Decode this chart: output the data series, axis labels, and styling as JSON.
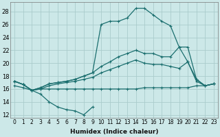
{
  "xlabel": "Humidex (Indice chaleur)",
  "bg_color": "#cce8e8",
  "grid_color": "#aacccc",
  "line_color": "#1a6e6e",
  "xlim": [
    -0.5,
    23.5
  ],
  "ylim": [
    11.5,
    29.5
  ],
  "xticks": [
    0,
    1,
    2,
    3,
    4,
    5,
    6,
    7,
    8,
    9,
    10,
    11,
    12,
    13,
    14,
    15,
    16,
    17,
    18,
    19,
    20,
    21,
    22,
    23
  ],
  "yticks": [
    12,
    14,
    16,
    18,
    20,
    22,
    24,
    26,
    28
  ],
  "series": {
    "dip": {
      "x": [
        0,
        1,
        2,
        3,
        4,
        5,
        6,
        7,
        8,
        9
      ],
      "y": [
        17.2,
        16.7,
        15.8,
        15.2,
        14.0,
        13.2,
        12.8,
        12.6,
        12.0,
        13.2
      ]
    },
    "flat_bottom": {
      "x": [
        0,
        1,
        2,
        3,
        4,
        5,
        6,
        7,
        8,
        9,
        10,
        11,
        12,
        13,
        14,
        15,
        16,
        17,
        18,
        19,
        20,
        21,
        22,
        23
      ],
      "y": [
        16.5,
        16.2,
        15.8,
        16.0,
        16.0,
        16.0,
        16.0,
        16.0,
        16.0,
        16.0,
        16.0,
        16.0,
        16.0,
        16.0,
        16.0,
        16.2,
        16.2,
        16.2,
        16.2,
        16.2,
        16.2,
        16.5,
        16.5,
        16.8
      ]
    },
    "mid_slope": {
      "x": [
        0,
        1,
        2,
        3,
        4,
        5,
        6,
        7,
        8,
        9,
        10,
        11,
        12,
        13,
        14,
        15,
        16,
        17,
        18,
        19,
        20,
        21,
        22,
        23
      ],
      "y": [
        17.2,
        16.7,
        15.8,
        16.0,
        16.5,
        16.8,
        17.0,
        17.2,
        17.5,
        17.8,
        18.5,
        19.0,
        19.5,
        20.0,
        20.5,
        20.0,
        19.8,
        19.8,
        19.5,
        19.2,
        20.2,
        17.2,
        16.5,
        16.8
      ]
    },
    "upper_slope": {
      "x": [
        0,
        1,
        2,
        3,
        4,
        5,
        6,
        7,
        8,
        9,
        10,
        11,
        12,
        13,
        14,
        15,
        16,
        17,
        18,
        19,
        20,
        21,
        22,
        23
      ],
      "y": [
        17.2,
        16.7,
        15.8,
        16.2,
        16.8,
        17.0,
        17.2,
        17.5,
        18.0,
        18.5,
        19.5,
        20.2,
        21.0,
        21.5,
        22.0,
        21.5,
        21.5,
        21.0,
        21.0,
        22.5,
        22.5,
        17.5,
        16.5,
        16.8
      ]
    },
    "peak": {
      "x": [
        0,
        1,
        2,
        3,
        4,
        5,
        6,
        7,
        8,
        9,
        10,
        11,
        12,
        13,
        14,
        15,
        16,
        17,
        18,
        19,
        20,
        21,
        22,
        23
      ],
      "y": [
        17.2,
        16.7,
        15.8,
        16.2,
        16.8,
        17.0,
        17.2,
        17.5,
        18.0,
        18.5,
        26.0,
        26.5,
        26.5,
        27.0,
        28.5,
        28.5,
        27.5,
        26.5,
        25.8,
        22.5,
        20.2,
        17.5,
        16.5,
        16.8
      ]
    }
  },
  "xlabel_fontsize": 6.5,
  "tick_fontsize": 5.5
}
